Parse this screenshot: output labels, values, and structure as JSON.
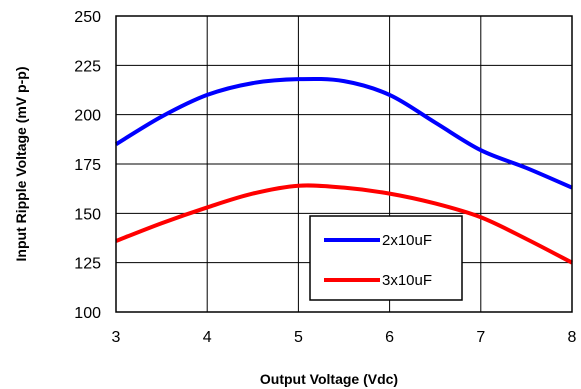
{
  "chart_data": {
    "type": "line",
    "xlabel": "Output Voltage (Vdc)",
    "ylabel": "Input Ripple Voltage (mV p-p)",
    "xlim": [
      3,
      8
    ],
    "ylim": [
      100,
      250
    ],
    "xticks": [
      3,
      4,
      5,
      6,
      7,
      8
    ],
    "yticks": [
      100,
      125,
      150,
      175,
      200,
      225,
      250
    ],
    "grid": true,
    "legend_position": "bottom-center",
    "series": [
      {
        "name": "2x10uF",
        "color": "#0000ff",
        "x": [
          3,
          3.5,
          4,
          4.5,
          5,
          5.5,
          6,
          6.5,
          7,
          7.5,
          8
        ],
        "y": [
          185,
          199,
          210,
          216,
          218,
          217,
          210,
          196,
          182,
          173,
          163
        ]
      },
      {
        "name": "3x10uF",
        "color": "#ff0000",
        "x": [
          3,
          3.5,
          4,
          4.5,
          5,
          5.5,
          6,
          6.5,
          7,
          7.5,
          8
        ],
        "y": [
          136,
          145,
          153,
          160,
          164,
          163,
          160,
          155,
          148,
          137,
          125
        ]
      }
    ]
  }
}
